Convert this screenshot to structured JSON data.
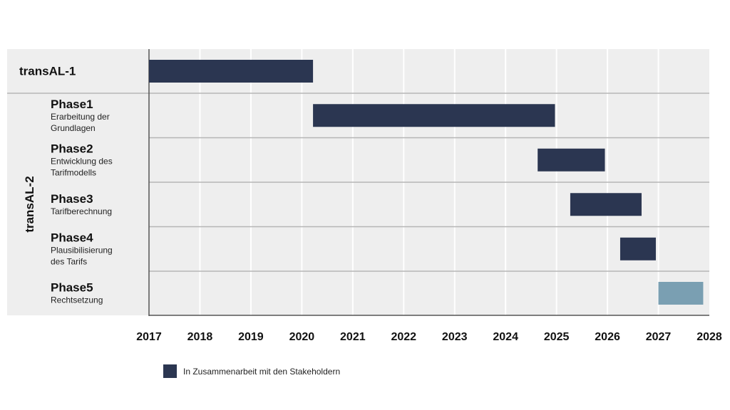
{
  "chart_data": {
    "type": "gantt",
    "x_ticks": [
      "2017",
      "2018",
      "2019",
      "2020",
      "2021",
      "2022",
      "2023",
      "2024",
      "2025",
      "2026",
      "2027",
      "2028"
    ],
    "xlim": [
      2017,
      2028
    ],
    "group_label": "transAL-2",
    "colors": {
      "dark": "#2b3651",
      "light": "#7a9fb2",
      "band": "#eeeeee",
      "grid": "#ffffff",
      "separator": "#b5b5b5",
      "axis": "#555555"
    },
    "tasks": [
      {
        "title": "transAL-1",
        "desc": [],
        "start": 2017.0,
        "end": 2020.22,
        "style": "dark"
      },
      {
        "title": "Phase1",
        "desc": [
          "Erarbeitung der",
          "Grundlagen"
        ],
        "start": 2020.22,
        "end": 2024.97,
        "style": "dark"
      },
      {
        "title": "Phase2",
        "desc": [
          "Entwicklung des",
          "Tarifmodells"
        ],
        "start": 2024.63,
        "end": 2025.95,
        "style": "dark"
      },
      {
        "title": "Phase3",
        "desc": [
          "Tarifberechnung"
        ],
        "start": 2025.27,
        "end": 2026.67,
        "style": "dark"
      },
      {
        "title": "Phase4",
        "desc": [
          "Plausibilisierung",
          "des Tarifs"
        ],
        "start": 2026.25,
        "end": 2026.95,
        "style": "dark"
      },
      {
        "title": "Phase5",
        "desc": [
          "Rechtsetzung"
        ],
        "start": 2027.0,
        "end": 2027.88,
        "style": "light"
      }
    ],
    "legend": {
      "label": "In Zusammenarbeit mit den Stakeholdern",
      "style": "dark"
    }
  }
}
